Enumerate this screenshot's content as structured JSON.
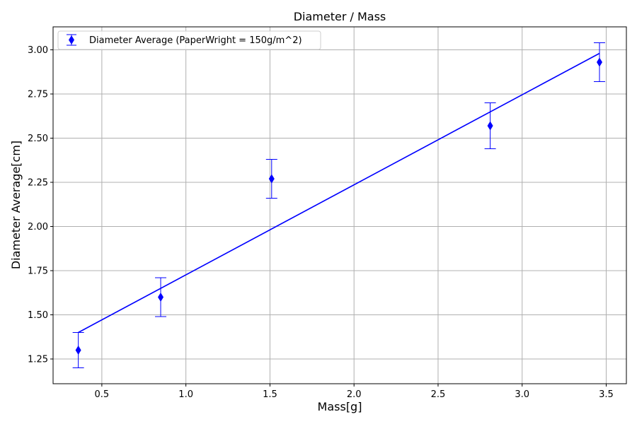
{
  "chart_data": {
    "type": "scatter",
    "title": "Diameter / Mass",
    "xlabel": "Mass[g]",
    "ylabel": "Diameter Average[cm]",
    "xlim": [
      0.21,
      3.62
    ],
    "ylim": [
      1.11,
      3.13
    ],
    "xticks": [
      0.5,
      1.0,
      1.5,
      2.0,
      2.5,
      3.0,
      3.5
    ],
    "xtick_labels": [
      "0.5",
      "1.0",
      "1.5",
      "2.0",
      "2.5",
      "3.0",
      "3.5"
    ],
    "yticks": [
      1.25,
      1.5,
      1.75,
      2.0,
      2.25,
      2.5,
      2.75,
      3.0
    ],
    "ytick_labels": [
      "1.25",
      "1.50",
      "1.75",
      "2.00",
      "2.25",
      "2.50",
      "2.75",
      "3.00"
    ],
    "grid": true,
    "legend_position": "top-left",
    "series": [
      {
        "name": "Diameter Average (PaperWright = 150g/m^2)",
        "color": "#0000ff",
        "marker": "diamond",
        "x": [
          0.36,
          0.85,
          1.51,
          2.81,
          3.46
        ],
        "y": [
          1.3,
          1.6,
          2.27,
          2.57,
          2.93
        ],
        "yerr": [
          0.1,
          0.11,
          0.11,
          0.13,
          0.11
        ]
      }
    ],
    "fit_line": {
      "color": "#0000ff",
      "x": [
        0.36,
        3.46
      ],
      "y": [
        1.4,
        2.98
      ]
    }
  }
}
